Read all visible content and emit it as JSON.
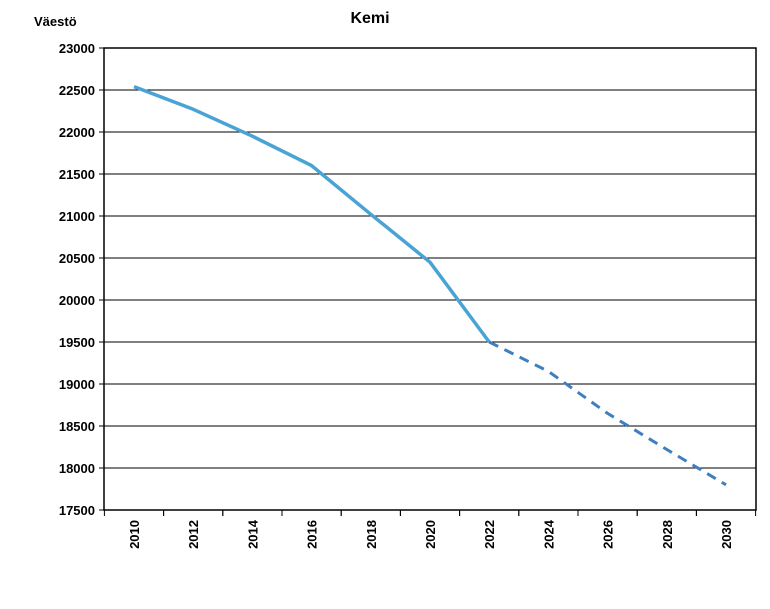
{
  "chart_data": {
    "type": "line",
    "title": "Kemi",
    "ylabel": "Väestö",
    "xlabel": "",
    "ylim": [
      17500,
      23000
    ],
    "xlim": [
      2010,
      2030
    ],
    "yticks": [
      "23000",
      "22500",
      "22000",
      "21500",
      "21000",
      "20500",
      "20000",
      "19500",
      "19000",
      "18500",
      "18000",
      "17500"
    ],
    "xticks": [
      "2010",
      "2012",
      "2014",
      "2016",
      "2018",
      "2020",
      "2022",
      "2024",
      "2026",
      "2028",
      "2030"
    ],
    "grid": "horizontal",
    "legend": "none",
    "series": [
      {
        "style": "solid",
        "color": "#4aa3d5",
        "points": [
          {
            "x": 2010,
            "y": 22540
          },
          {
            "x": 2012,
            "y": 22270
          },
          {
            "x": 2014,
            "y": 21950
          },
          {
            "x": 2016,
            "y": 21600
          },
          {
            "x": 2018,
            "y": 21020
          },
          {
            "x": 2020,
            "y": 20450
          },
          {
            "x": 2022,
            "y": 19500
          }
        ]
      },
      {
        "style": "dashed",
        "color": "#3f7fbf",
        "points": [
          {
            "x": 2022,
            "y": 19500
          },
          {
            "x": 2024,
            "y": 19150
          },
          {
            "x": 2026,
            "y": 18650
          },
          {
            "x": 2028,
            "y": 18220
          },
          {
            "x": 2030,
            "y": 17800
          }
        ]
      }
    ]
  }
}
